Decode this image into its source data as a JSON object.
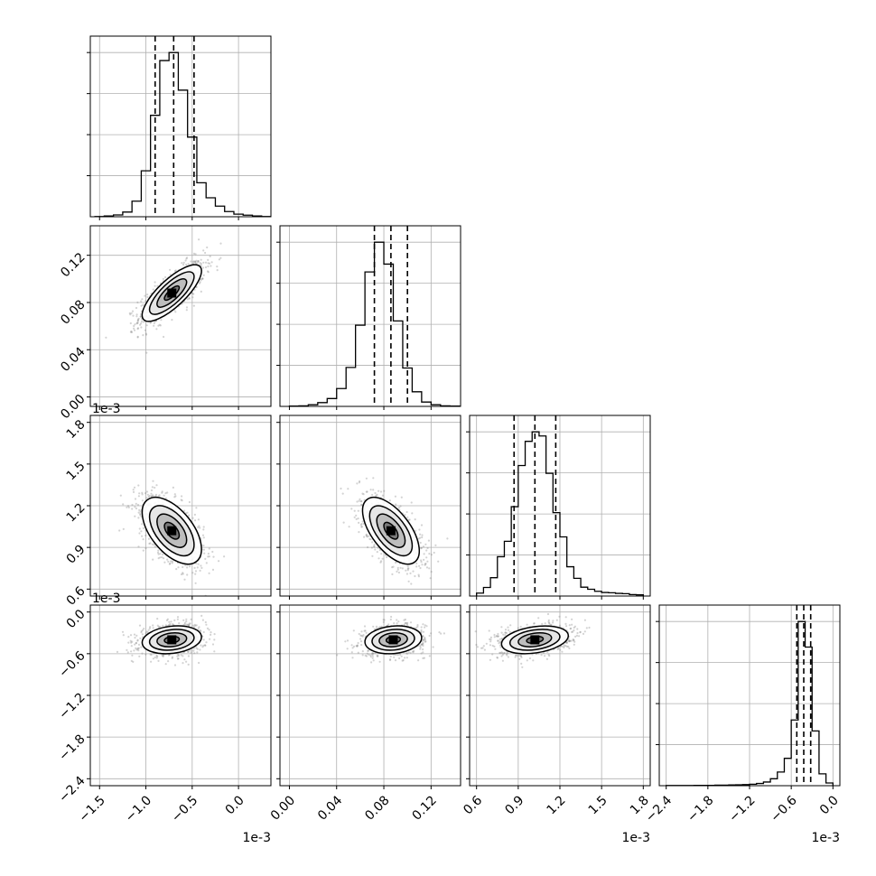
{
  "chart_data": {
    "type": "corner",
    "n_params": 4,
    "params": [
      {
        "scale_label": "1e-3",
        "range": [
          -1.6,
          0.35
        ],
        "ticks": [
          -1.5,
          -1.0,
          -0.5,
          0.0
        ],
        "tick_labels": [
          "−1.5",
          "−1.0",
          "−0.5",
          "0.0"
        ],
        "quantiles": [
          -0.9,
          -0.7,
          -0.48
        ],
        "histogram": {
          "bins": [
            -1.55,
            -1.45,
            -1.35,
            -1.25,
            -1.15,
            -1.05,
            -0.95,
            -0.85,
            -0.75,
            -0.65,
            -0.55,
            -0.45,
            -0.35,
            -0.25,
            -0.15,
            -0.05,
            0.05,
            0.15,
            0.25
          ],
          "counts": [
            1,
            3,
            7,
            18,
            60,
            177,
            391,
            602,
            633,
            488,
            307,
            131,
            73,
            41,
            20,
            10,
            6,
            3,
            1
          ]
        }
      },
      {
        "scale_label": "",
        "range": [
          -0.008,
          0.145
        ],
        "ticks": [
          0.0,
          0.04,
          0.08,
          0.12
        ],
        "tick_labels": [
          "0.00",
          "0.04",
          "0.08",
          "0.12"
        ],
        "quantiles": [
          0.072,
          0.086,
          0.1
        ],
        "histogram": {
          "bins": [
            0.0,
            0.008,
            0.016,
            0.024,
            0.032,
            0.04,
            0.048,
            0.056,
            0.064,
            0.072,
            0.08,
            0.088,
            0.096,
            0.104,
            0.112,
            0.12,
            0.128,
            0.136
          ],
          "counts": [
            1,
            2,
            6,
            14,
            29,
            66,
            144,
            300,
            497,
            607,
            526,
            316,
            142,
            54,
            16,
            6,
            2,
            1
          ]
        }
      },
      {
        "scale_label": "1e-3",
        "range": [
          0.55,
          1.85
        ],
        "ticks": [
          0.6,
          0.9,
          1.2,
          1.5,
          1.8
        ],
        "tick_labels": [
          "0.6",
          "0.9",
          "1.2",
          "1.5",
          "1.8"
        ],
        "quantiles": [
          0.87,
          1.02,
          1.17
        ],
        "histogram": {
          "bins": [
            0.6,
            0.65,
            0.7,
            0.75,
            0.8,
            0.85,
            0.9,
            0.95,
            1.0,
            1.05,
            1.1,
            1.15,
            1.2,
            1.25,
            1.3,
            1.35,
            1.4,
            1.45,
            1.5,
            1.55,
            1.6,
            1.65,
            1.7,
            1.75
          ],
          "counts": [
            10,
            29,
            62,
            133,
            185,
            302,
            441,
            523,
            555,
            541,
            415,
            282,
            200,
            99,
            60,
            30,
            23,
            16,
            12,
            11,
            9,
            8,
            5,
            4
          ]
        }
      },
      {
        "scale_label": "1e-3",
        "range": [
          -2.5,
          0.1
        ],
        "ticks": [
          -2.4,
          -1.8,
          -1.2,
          -0.6,
          0.0
        ],
        "tick_labels": [
          "−2.4",
          "−1.8",
          "−1.2",
          "−0.6",
          "0.0"
        ],
        "quantiles": [
          -0.52,
          -0.42,
          -0.32
        ],
        "histogram": {
          "bins": [
            -2.4,
            -2.3,
            -2.2,
            -2.1,
            -2.0,
            -1.9,
            -1.8,
            -1.7,
            -1.6,
            -1.5,
            -1.4,
            -1.3,
            -1.2,
            -1.1,
            -1.0,
            -0.9,
            -0.8,
            -0.7,
            -0.6,
            -0.5,
            -0.4,
            -0.3,
            -0.2,
            -0.1
          ],
          "counts": [
            1,
            1,
            1,
            1,
            2,
            2,
            2,
            3,
            3,
            4,
            5,
            6,
            8,
            12,
            20,
            38,
            75,
            150,
            360,
            900,
            760,
            300,
            65,
            15
          ]
        }
      }
    ],
    "pairs": [
      {
        "x": 0,
        "y": 1,
        "mean": [
          -0.72,
          0.088
        ],
        "sd": [
          0.16,
          0.012
        ],
        "corr": 0.78
      },
      {
        "x": 0,
        "y": 2,
        "mean": [
          -0.72,
          1.02
        ],
        "sd": [
          0.16,
          0.12
        ],
        "corr": -0.55
      },
      {
        "x": 1,
        "y": 2,
        "mean": [
          0.086,
          1.02
        ],
        "sd": [
          0.012,
          0.12
        ],
        "corr": -0.6
      },
      {
        "x": 0,
        "y": 3,
        "mean": [
          -0.72,
          -0.4
        ],
        "sd": [
          0.16,
          0.1
        ],
        "corr": 0.2
      },
      {
        "x": 1,
        "y": 3,
        "mean": [
          0.088,
          -0.4
        ],
        "sd": [
          0.012,
          0.1
        ],
        "corr": 0.15
      },
      {
        "x": 2,
        "y": 3,
        "mean": [
          1.02,
          -0.4
        ],
        "sd": [
          0.12,
          0.1
        ],
        "corr": 0.3
      }
    ],
    "contour_levels_sigma": [
      0.5,
      1.0,
      1.5,
      2.0
    ],
    "grid": true,
    "colors": {
      "line": "#000000",
      "points": "#808080",
      "grid": "#b0b0b0"
    }
  }
}
